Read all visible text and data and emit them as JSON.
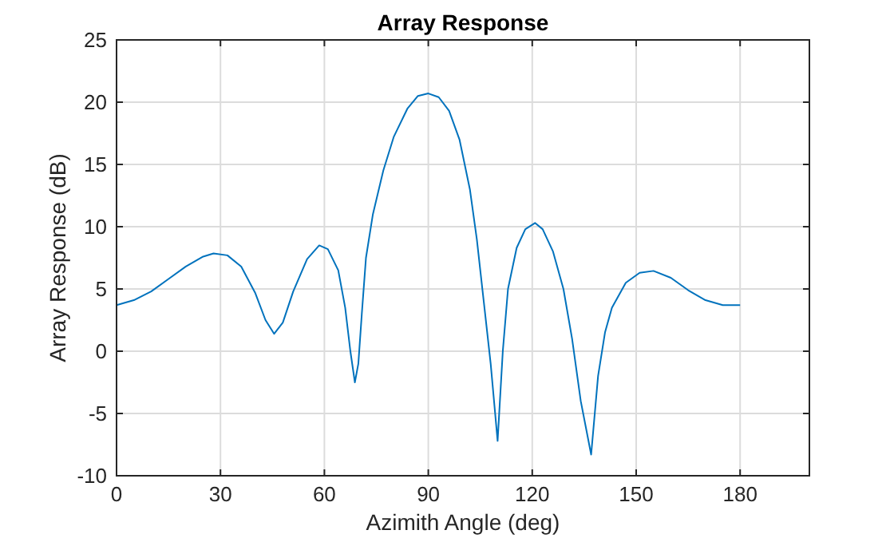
{
  "chart_data": {
    "type": "line",
    "title": "Array Response",
    "xlabel": "Azimith Angle (deg)",
    "ylabel": "Array Response (dB)",
    "x": [
      0,
      5,
      10,
      15,
      20,
      25,
      28,
      32,
      36,
      40,
      43,
      45.5,
      48,
      51,
      55,
      58.5,
      61,
      64,
      66,
      67.5,
      68.8,
      69.8,
      70.8,
      72,
      74,
      77,
      80,
      84,
      87,
      90,
      93,
      96,
      99,
      102,
      104,
      106,
      108,
      110,
      111.5,
      113,
      115.5,
      118,
      120.8,
      123,
      126,
      129,
      131.5,
      134,
      137,
      139,
      141,
      143,
      147,
      151,
      155,
      160,
      165,
      170,
      175,
      180
    ],
    "series": [
      {
        "color": "#0072bd",
        "values": [
          3.7,
          4.1,
          4.8,
          5.8,
          6.8,
          7.6,
          7.85,
          7.7,
          6.8,
          4.7,
          2.5,
          1.4,
          2.3,
          4.8,
          7.4,
          8.5,
          8.2,
          6.5,
          3.5,
          0,
          -2.5,
          -1,
          3,
          7.5,
          11,
          14.5,
          17.2,
          19.5,
          20.5,
          20.7,
          20.4,
          19.3,
          17,
          13,
          9,
          4,
          -1,
          -7.2,
          0,
          5,
          8.3,
          9.8,
          10.3,
          9.8,
          8,
          5,
          1,
          -4,
          -8.3,
          -2,
          1.5,
          3.5,
          5.5,
          6.3,
          6.45,
          5.9,
          4.9,
          4.1,
          3.7,
          3.7
        ]
      }
    ],
    "xlim": [
      0,
      200
    ],
    "xticks": [
      0,
      30,
      60,
      90,
      120,
      150,
      180
    ],
    "ylim": [
      -10,
      25
    ],
    "yticks": [
      -10,
      -5,
      0,
      5,
      10,
      15,
      20,
      25
    ],
    "grid": true,
    "line_style": "solid",
    "marker": "none"
  }
}
